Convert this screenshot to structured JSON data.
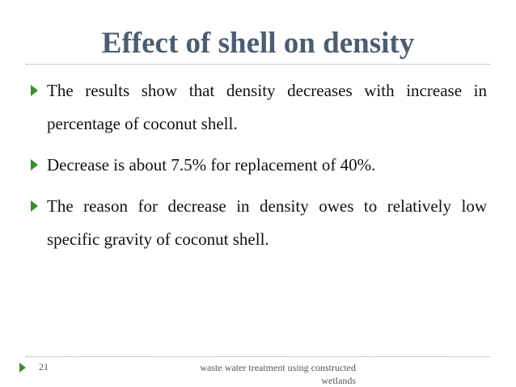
{
  "slide": {
    "title": "Effect of shell on density",
    "bullets": [
      "The results show that density decreases with increase in percentage of coconut shell.",
      "Decrease is about 7.5% for replacement of 40%.",
      "The reason for decrease in density owes to relatively low specific gravity of coconut shell."
    ],
    "footer": {
      "page_number": "21",
      "text": "waste water treatment using constructed wetlands"
    }
  }
}
